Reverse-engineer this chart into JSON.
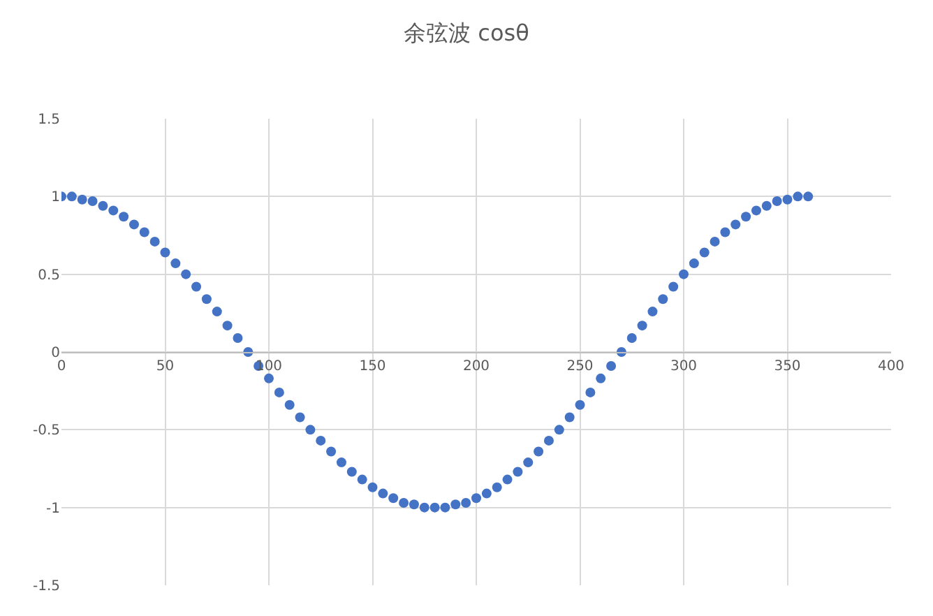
{
  "chart_data": {
    "type": "scatter",
    "title": "余弦波 cosθ",
    "x": [
      0,
      5,
      10,
      15,
      20,
      25,
      30,
      35,
      40,
      45,
      50,
      55,
      60,
      65,
      70,
      75,
      80,
      85,
      90,
      95,
      100,
      105,
      110,
      115,
      120,
      125,
      130,
      135,
      140,
      145,
      150,
      155,
      160,
      165,
      170,
      175,
      180,
      185,
      190,
      195,
      200,
      205,
      210,
      215,
      220,
      225,
      230,
      235,
      240,
      245,
      250,
      255,
      260,
      265,
      270,
      275,
      280,
      285,
      290,
      295,
      300,
      305,
      310,
      315,
      320,
      325,
      330,
      335,
      340,
      345,
      350,
      355,
      360
    ],
    "series": [
      {
        "color": "#4472c4",
        "values": [
          1,
          1,
          0.98,
          0.97,
          0.94,
          0.91,
          0.87,
          0.82,
          0.77,
          0.71,
          0.64,
          0.57,
          0.5,
          0.42,
          0.34,
          0.26,
          0.17,
          0.09,
          0,
          -0.09,
          -0.17,
          -0.26,
          -0.34,
          -0.42,
          -0.5,
          -0.57,
          -0.64,
          -0.71,
          -0.77,
          -0.82,
          -0.87,
          -0.91,
          -0.94,
          -0.97,
          -0.98,
          -1,
          -1,
          -1,
          -0.98,
          -0.97,
          -0.94,
          -0.91,
          -0.87,
          -0.82,
          -0.77,
          -0.71,
          -0.64,
          -0.57,
          -0.5,
          -0.42,
          -0.34,
          -0.26,
          -0.17,
          -0.09,
          0,
          0.09,
          0.17,
          0.26,
          0.34,
          0.42,
          0.5,
          0.57,
          0.64,
          0.71,
          0.77,
          0.82,
          0.87,
          0.91,
          0.94,
          0.97,
          0.98,
          1,
          1
        ]
      }
    ],
    "xlim": [
      0,
      400
    ],
    "xticks": [
      0,
      50,
      100,
      150,
      200,
      250,
      300,
      350,
      400
    ],
    "ylim": [
      -1.5,
      1.5
    ],
    "yticks": [
      -1.5,
      -1,
      -0.5,
      0,
      0.5,
      1,
      1.5
    ],
    "grid": true,
    "marker": "circle"
  }
}
